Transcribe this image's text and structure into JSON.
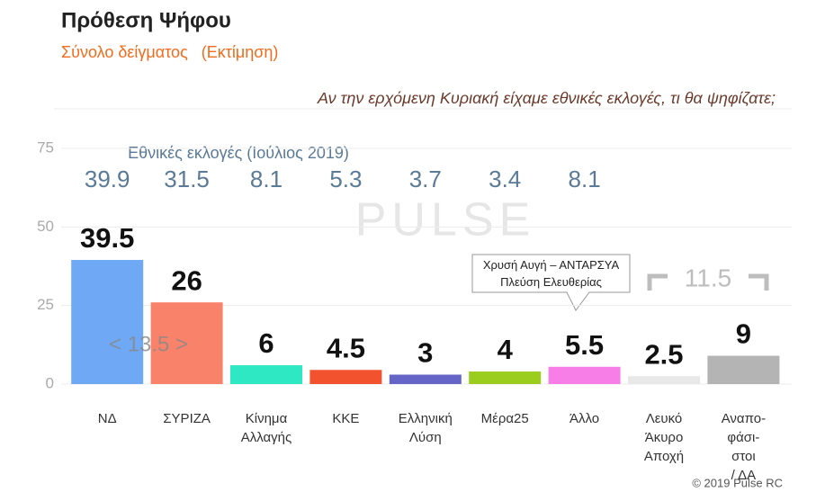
{
  "chart_data": {
    "type": "bar",
    "title": "Πρόθεση Ψήφου",
    "subtitle": "Σύνολο δείγματος   (Εκτίμηση)",
    "question": "Αν την ερχόμενη Κυριακή είχαμε εθνικές εκλογές, τι θα ψηφίζατε;",
    "watermark": "PULSE",
    "source": "© 2019 Pulse RC",
    "categories": [
      "ΝΔ",
      "ΣΥΡΙΖΑ",
      "Κίνημα\nΑλλαγής",
      "ΚΚΕ",
      "Ελληνική\nΛύση",
      "Μέρα25",
      "Άλλο",
      "Λευκό\nΆκυρο\nΑποχή",
      "Αναπο-\nφάσι-\nστοι\n/ ΔΑ"
    ],
    "values": [
      39.5,
      26,
      6,
      4.5,
      3,
      4,
      5.5,
      2.5,
      9
    ],
    "colors": [
      "#6fa8f5",
      "#f9836a",
      "#2ee8c4",
      "#f2522e",
      "#6565c8",
      "#9acd1e",
      "#f77ee6",
      "#e8e8e8",
      "#b4b4b4"
    ],
    "previous": {
      "label": "Εθνικές εκλογές (Ιούλιος 2019)",
      "values": [
        39.9,
        31.5,
        8.1,
        5.3,
        3.7,
        3.4,
        8.1,
        null,
        null
      ]
    },
    "annotations": {
      "gap": "< 13.5 >",
      "sum": "11.5",
      "callout": "Χρυσή Αυγή – ΑΝΤΑΡΣΥΑ\nΠλεύση Ελευθερίας"
    },
    "ylim": [
      0,
      75
    ],
    "yticks": [
      0,
      25,
      50,
      75
    ],
    "grid": true
  }
}
